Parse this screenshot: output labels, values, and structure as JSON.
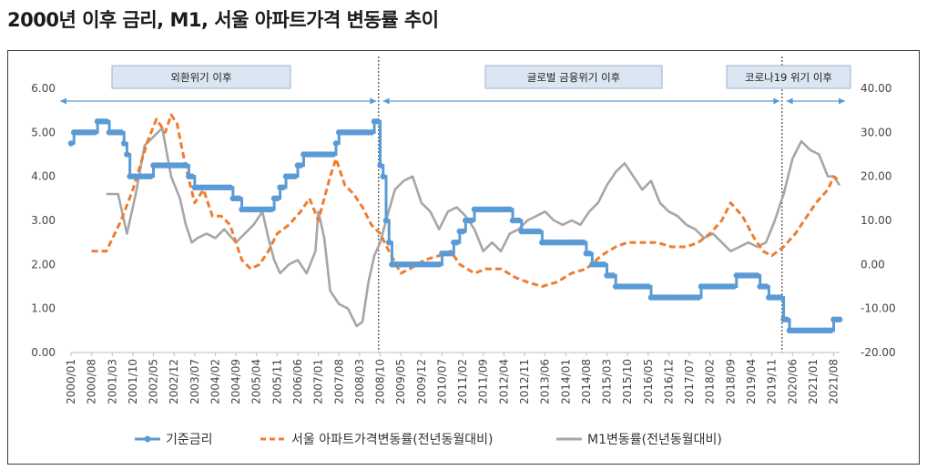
{
  "title": "2000년 이후 금리, M1, 서울 아파트가격 변동률 추이",
  "chart_data": {
    "type": "line",
    "title": "2000년 이후 금리, M1, 서울 아파트가격 변동률 추이",
    "x_tick_labels": [
      "2000/01",
      "2000/08",
      "2001/03",
      "2001/10",
      "2002/05",
      "2002/12",
      "2003/07",
      "2004/02",
      "2004/09",
      "2005/04",
      "2005/11",
      "2006/06",
      "2007/01",
      "2007/08",
      "2008/03",
      "2008/10",
      "2009/05",
      "2009/12",
      "2010/07",
      "2011/02",
      "2011/09",
      "2012/04",
      "2012/11",
      "2013/06",
      "2014/01",
      "2014/08",
      "2015/03",
      "2015/10",
      "2016/05",
      "2016/12",
      "2017/07",
      "2018/02",
      "2018/09",
      "2019/04",
      "2019/11",
      "2020/06",
      "2021/01",
      "2021/08"
    ],
    "x_range": [
      "2000/01",
      "2021/10"
    ],
    "y_left": {
      "min": 0,
      "max": 6,
      "ticks": [
        "0.00",
        "1.00",
        "2.00",
        "3.00",
        "4.00",
        "5.00",
        "6.00"
      ]
    },
    "y_right": {
      "min": -20,
      "max": 40,
      "ticks": [
        "-20.00",
        "-10.00",
        "0.00",
        "10.00",
        "20.00",
        "30.00",
        "40.00"
      ]
    },
    "periods": [
      {
        "label": "외환위기 이후",
        "from": "2000/01",
        "to": "2008/09"
      },
      {
        "label": "글로벌 금융위기 이후",
        "from": "2008/10",
        "to": "2020/02"
      },
      {
        "label": "코로나19 위기 이후",
        "from": "2020/03",
        "to": "2021/10"
      }
    ],
    "dividers": [
      "2008/09",
      "2020/02"
    ],
    "legend_position": "bottom",
    "series": [
      {
        "name": "기준금리",
        "axis": "left",
        "color": "#5b9bd5",
        "style": "solid-marker",
        "points": [
          [
            "2000/01",
            4.75
          ],
          [
            "2000/02",
            5.0
          ],
          [
            "2000/10",
            5.25
          ],
          [
            "2001/02",
            5.0
          ],
          [
            "2001/07",
            4.75
          ],
          [
            "2001/08",
            4.5
          ],
          [
            "2001/09",
            4.0
          ],
          [
            "2002/05",
            4.25
          ],
          [
            "2003/05",
            4.0
          ],
          [
            "2003/07",
            3.75
          ],
          [
            "2004/08",
            3.5
          ],
          [
            "2004/11",
            3.25
          ],
          [
            "2005/10",
            3.5
          ],
          [
            "2005/12",
            3.75
          ],
          [
            "2006/02",
            4.0
          ],
          [
            "2006/06",
            4.25
          ],
          [
            "2006/08",
            4.5
          ],
          [
            "2007/07",
            4.75
          ],
          [
            "2007/08",
            5.0
          ],
          [
            "2008/08",
            5.25
          ],
          [
            "2008/10",
            4.25
          ],
          [
            "2008/11",
            4.0
          ],
          [
            "2008/12",
            3.0
          ],
          [
            "2009/01",
            2.5
          ],
          [
            "2009/02",
            2.0
          ],
          [
            "2010/07",
            2.25
          ],
          [
            "2010/11",
            2.5
          ],
          [
            "2011/01",
            2.75
          ],
          [
            "2011/03",
            3.0
          ],
          [
            "2011/06",
            3.25
          ],
          [
            "2012/07",
            3.0
          ],
          [
            "2012/10",
            2.75
          ],
          [
            "2013/05",
            2.5
          ],
          [
            "2014/08",
            2.25
          ],
          [
            "2014/10",
            2.0
          ],
          [
            "2015/03",
            1.75
          ],
          [
            "2015/06",
            1.5
          ],
          [
            "2016/06",
            1.25
          ],
          [
            "2017/11",
            1.5
          ],
          [
            "2018/11",
            1.75
          ],
          [
            "2019/07",
            1.5
          ],
          [
            "2019/10",
            1.25
          ],
          [
            "2020/03",
            0.75
          ],
          [
            "2020/05",
            0.5
          ],
          [
            "2021/08",
            0.75
          ],
          [
            "2021/10",
            0.75
          ]
        ]
      },
      {
        "name": "서울 아파트가격변동률(전년동월대비)",
        "axis": "right",
        "color": "#ed7d31",
        "style": "dashed",
        "points": [
          [
            "2000/08",
            3
          ],
          [
            "2001/01",
            3
          ],
          [
            "2001/06",
            10
          ],
          [
            "2001/10",
            17
          ],
          [
            "2002/03",
            28
          ],
          [
            "2002/06",
            33
          ],
          [
            "2002/09",
            30
          ],
          [
            "2002/11",
            34
          ],
          [
            "2003/01",
            32
          ],
          [
            "2003/04",
            22
          ],
          [
            "2003/07",
            14
          ],
          [
            "2003/10",
            17
          ],
          [
            "2004/01",
            11
          ],
          [
            "2004/04",
            11
          ],
          [
            "2004/07",
            9
          ],
          [
            "2004/11",
            1
          ],
          [
            "2005/02",
            -1
          ],
          [
            "2005/05",
            0
          ],
          [
            "2005/08",
            3
          ],
          [
            "2005/11",
            7
          ],
          [
            "2006/03",
            9
          ],
          [
            "2006/07",
            12
          ],
          [
            "2006/10",
            15
          ],
          [
            "2007/01",
            10
          ],
          [
            "2007/05",
            20
          ],
          [
            "2007/07",
            24
          ],
          [
            "2007/10",
            18
          ],
          [
            "2008/01",
            16
          ],
          [
            "2008/04",
            13
          ],
          [
            "2008/07",
            9
          ],
          [
            "2008/10",
            7
          ],
          [
            "2009/01",
            3
          ],
          [
            "2009/05",
            -2
          ],
          [
            "2009/08",
            -1
          ],
          [
            "2010/01",
            1
          ],
          [
            "2010/06",
            2
          ],
          [
            "2010/10",
            3
          ],
          [
            "2011/01",
            0
          ],
          [
            "2011/06",
            -2
          ],
          [
            "2011/10",
            -1
          ],
          [
            "2012/03",
            -1
          ],
          [
            "2012/08",
            -3
          ],
          [
            "2012/12",
            -4
          ],
          [
            "2013/05",
            -5
          ],
          [
            "2013/10",
            -4
          ],
          [
            "2014/03",
            -2
          ],
          [
            "2014/08",
            -1
          ],
          [
            "2015/01",
            2
          ],
          [
            "2015/06",
            4
          ],
          [
            "2015/10",
            5
          ],
          [
            "2016/03",
            5
          ],
          [
            "2016/08",
            5
          ],
          [
            "2017/01",
            4
          ],
          [
            "2017/06",
            4
          ],
          [
            "2017/10",
            5
          ],
          [
            "2018/02",
            7
          ],
          [
            "2018/06",
            10
          ],
          [
            "2018/09",
            14
          ],
          [
            "2019/01",
            11
          ],
          [
            "2019/05",
            6
          ],
          [
            "2019/08",
            3
          ],
          [
            "2019/11",
            2
          ],
          [
            "2020/03",
            4
          ],
          [
            "2020/07",
            7
          ],
          [
            "2020/10",
            10
          ],
          [
            "2021/02",
            14
          ],
          [
            "2021/06",
            17
          ],
          [
            "2021/08",
            20
          ],
          [
            "2021/10",
            19
          ]
        ]
      },
      {
        "name": "M1변동률(전년동월대비)",
        "axis": "right",
        "color": "#a6a6a6",
        "style": "solid",
        "points": [
          [
            "2001/01",
            16
          ],
          [
            "2001/05",
            16
          ],
          [
            "2001/08",
            7
          ],
          [
            "2001/11",
            16
          ],
          [
            "2002/02",
            27
          ],
          [
            "2002/05",
            29
          ],
          [
            "2002/08",
            31
          ],
          [
            "2002/11",
            20
          ],
          [
            "2003/02",
            15
          ],
          [
            "2003/04",
            9
          ],
          [
            "2003/06",
            5
          ],
          [
            "2003/08",
            6
          ],
          [
            "2003/11",
            7
          ],
          [
            "2004/02",
            6
          ],
          [
            "2004/05",
            8
          ],
          [
            "2004/09",
            5
          ],
          [
            "2004/12",
            7
          ],
          [
            "2005/03",
            9
          ],
          [
            "2005/06",
            12
          ],
          [
            "2005/08",
            6
          ],
          [
            "2005/10",
            1
          ],
          [
            "2005/12",
            -2
          ],
          [
            "2006/03",
            0
          ],
          [
            "2006/06",
            1
          ],
          [
            "2006/09",
            -2
          ],
          [
            "2006/12",
            3
          ],
          [
            "2007/01",
            12
          ],
          [
            "2007/03",
            6
          ],
          [
            "2007/05",
            -6
          ],
          [
            "2007/08",
            -9
          ],
          [
            "2007/11",
            -10
          ],
          [
            "2008/02",
            -14
          ],
          [
            "2008/04",
            -13
          ],
          [
            "2008/06",
            -4
          ],
          [
            "2008/08",
            2
          ],
          [
            "2008/10",
            5
          ],
          [
            "2008/12",
            10
          ],
          [
            "2009/03",
            17
          ],
          [
            "2009/06",
            19
          ],
          [
            "2009/09",
            20
          ],
          [
            "2009/12",
            14
          ],
          [
            "2010/03",
            12
          ],
          [
            "2010/06",
            8
          ],
          [
            "2010/09",
            12
          ],
          [
            "2010/12",
            13
          ],
          [
            "2011/03",
            11
          ],
          [
            "2011/06",
            8
          ],
          [
            "2011/09",
            3
          ],
          [
            "2011/12",
            5
          ],
          [
            "2012/03",
            3
          ],
          [
            "2012/06",
            7
          ],
          [
            "2012/09",
            8
          ],
          [
            "2012/12",
            10
          ],
          [
            "2013/03",
            11
          ],
          [
            "2013/06",
            12
          ],
          [
            "2013/09",
            10
          ],
          [
            "2013/12",
            9
          ],
          [
            "2014/03",
            10
          ],
          [
            "2014/06",
            9
          ],
          [
            "2014/09",
            12
          ],
          [
            "2014/12",
            14
          ],
          [
            "2015/03",
            18
          ],
          [
            "2015/06",
            21
          ],
          [
            "2015/09",
            23
          ],
          [
            "2015/12",
            20
          ],
          [
            "2016/03",
            17
          ],
          [
            "2016/06",
            19
          ],
          [
            "2016/09",
            14
          ],
          [
            "2016/12",
            12
          ],
          [
            "2017/03",
            11
          ],
          [
            "2017/06",
            9
          ],
          [
            "2017/09",
            8
          ],
          [
            "2017/12",
            6
          ],
          [
            "2018/03",
            7
          ],
          [
            "2018/06",
            5
          ],
          [
            "2018/09",
            3
          ],
          [
            "2018/12",
            4
          ],
          [
            "2019/03",
            5
          ],
          [
            "2019/06",
            4
          ],
          [
            "2019/09",
            5
          ],
          [
            "2019/12",
            10
          ],
          [
            "2020/03",
            16
          ],
          [
            "2020/06",
            24
          ],
          [
            "2020/09",
            28
          ],
          [
            "2020/12",
            26
          ],
          [
            "2021/03",
            25
          ],
          [
            "2021/06",
            20
          ],
          [
            "2021/08",
            20
          ],
          [
            "2021/10",
            18
          ]
        ]
      }
    ]
  }
}
